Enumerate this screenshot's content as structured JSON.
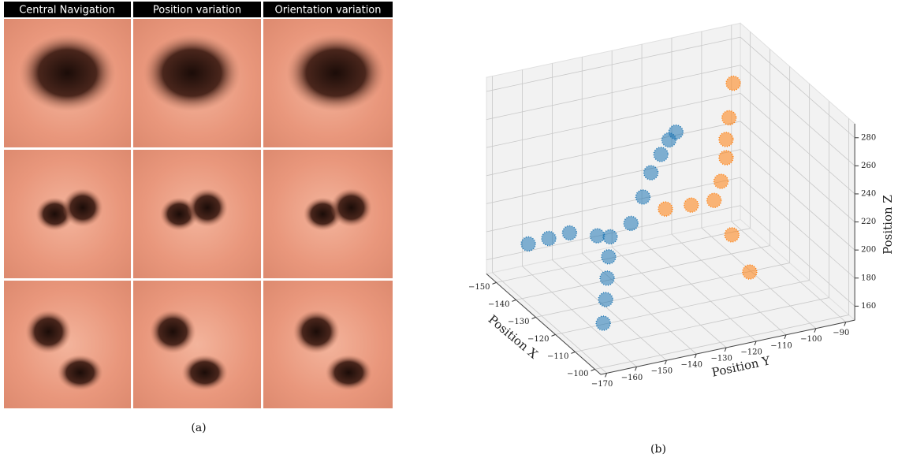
{
  "panel_a": {
    "headers": [
      "Central Navigation",
      "Position variation",
      "Orientation variation"
    ],
    "caption": "(a)"
  },
  "panel_b_caption": "(b)",
  "chart_data": {
    "type": "scatter3d",
    "xlabel": "Position X",
    "ylabel": "Position Y",
    "zlabel": "Position Z",
    "xlim": [
      -155,
      -97
    ],
    "ylim": [
      -172,
      -87
    ],
    "zlim": [
      150,
      290
    ],
    "xticks": [
      {
        "value": -150,
        "label": "−150"
      },
      {
        "value": -140,
        "label": "−140"
      },
      {
        "value": -130,
        "label": "−130"
      },
      {
        "value": -120,
        "label": "−120"
      },
      {
        "value": -110,
        "label": "−110"
      },
      {
        "value": -100,
        "label": "−100"
      }
    ],
    "yticks": [
      {
        "value": -170,
        "label": "−170"
      },
      {
        "value": -160,
        "label": "−160"
      },
      {
        "value": -150,
        "label": "−150"
      },
      {
        "value": -140,
        "label": "−140"
      },
      {
        "value": -130,
        "label": "−130"
      },
      {
        "value": -120,
        "label": "−120"
      },
      {
        "value": -110,
        "label": "−110"
      },
      {
        "value": -100,
        "label": "−100"
      },
      {
        "value": -90,
        "label": "−90"
      }
    ],
    "zticks": [
      160,
      180,
      200,
      220,
      240,
      260,
      280
    ],
    "grid": true,
    "series": [
      {
        "color": "#1f77b4",
        "x": [
          -115,
          -115,
          -115,
          -115,
          -115,
          -120,
          -128,
          -134,
          -140,
          -112,
          -112,
          -114,
          -115,
          -117,
          -118
        ],
        "y": [
          -159.3,
          -158.5,
          -158,
          -157.5,
          -157,
          -158,
          -162,
          -165,
          -167.9,
          -152,
          -148,
          -144,
          -140,
          -136,
          -133
        ],
        "z": [
          158.5,
          175,
          190,
          205,
          219,
          214,
          208,
          198,
          188,
          230,
          247,
          260,
          270,
          276,
          279
        ]
      },
      {
        "color": "#ff7f0e",
        "x": [
          -135,
          -135,
          -135,
          -135,
          -133,
          -132,
          -136,
          -140,
          -126,
          -120
        ],
        "y": [
          -102.6,
          -104,
          -105,
          -105,
          -108,
          -111,
          -116,
          -122,
          -109,
          -107
        ],
        "z": [
          279,
          255,
          240,
          227,
          214,
          203,
          197,
          192,
          185,
          165
        ]
      }
    ]
  }
}
